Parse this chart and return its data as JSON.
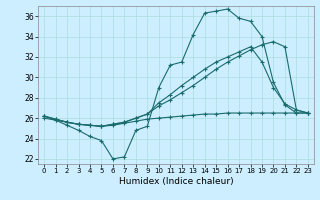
{
  "title": "",
  "xlabel": "Humidex (Indice chaleur)",
  "bg_color": "#cceeff",
  "line_color": "#1a6b6b",
  "grid_color": "#aadddd",
  "xlim": [
    -0.5,
    23.5
  ],
  "ylim": [
    21.5,
    37.0
  ],
  "xticks": [
    0,
    1,
    2,
    3,
    4,
    5,
    6,
    7,
    8,
    9,
    10,
    11,
    12,
    13,
    14,
    15,
    16,
    17,
    18,
    19,
    20,
    21,
    22,
    23
  ],
  "yticks": [
    22,
    24,
    26,
    28,
    30,
    32,
    34,
    36
  ],
  "s1": [
    26.2,
    25.8,
    25.3,
    24.8,
    24.2,
    23.8,
    22.0,
    22.2,
    24.8,
    25.2,
    29.0,
    31.2,
    31.5,
    34.2,
    36.3,
    36.5,
    36.7,
    35.8,
    35.5,
    34.0,
    29.5,
    27.3,
    26.5,
    26.5
  ],
  "s2": [
    26.2,
    25.9,
    25.6,
    25.4,
    25.3,
    25.2,
    25.4,
    25.6,
    26.0,
    26.4,
    27.2,
    27.8,
    28.5,
    29.2,
    30.0,
    30.8,
    31.5,
    32.1,
    32.7,
    33.2,
    33.5,
    33.0,
    26.8,
    26.5
  ],
  "s3": [
    26.2,
    25.9,
    25.6,
    25.4,
    25.3,
    25.2,
    25.4,
    25.6,
    26.0,
    26.4,
    27.5,
    28.3,
    29.2,
    30.0,
    30.8,
    31.5,
    32.0,
    32.5,
    33.0,
    31.5,
    29.0,
    27.4,
    26.8,
    26.5
  ],
  "s4": [
    26.0,
    25.8,
    25.6,
    25.4,
    25.3,
    25.2,
    25.3,
    25.5,
    25.7,
    25.9,
    26.0,
    26.1,
    26.2,
    26.3,
    26.4,
    26.4,
    26.5,
    26.5,
    26.5,
    26.5,
    26.5,
    26.5,
    26.5,
    26.5
  ]
}
